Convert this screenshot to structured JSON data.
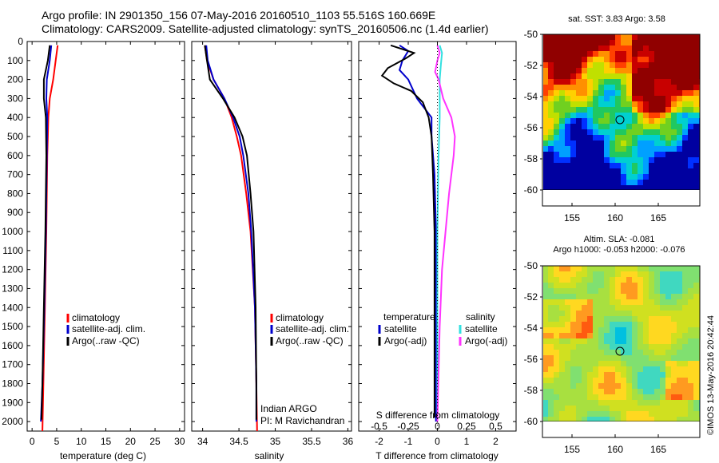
{
  "header": {
    "line1": "Argo profile: IN 2901350_156 07-May-2016 20160510_1103 55.516S 160.669E",
    "line2": "Climatology: CARS2009. Satellite-adjusted climatology: synTS_20160506.nc (1.4d earlier)"
  },
  "colors": {
    "climatology": "#ff0000",
    "satellite": "#0000cc",
    "argo": "#000000",
    "sat_salinity": "#33e0e0",
    "argo_salinity": "#ff33ff"
  },
  "depth_ticks": [
    "0",
    "100",
    "200",
    "300",
    "400",
    "500",
    "600",
    "700",
    "800",
    "900",
    "1000",
    "1100",
    "1200",
    "1300",
    "1400",
    "1500",
    "1600",
    "1700",
    "1800",
    "1900",
    "2000"
  ],
  "temperature_panel": {
    "xlabel": "temperature (deg C)",
    "xticks": [
      "0",
      "5",
      "10",
      "15",
      "20",
      "25",
      "30"
    ],
    "legend": [
      "climatology",
      "satellite-adj. clim.",
      "Argo(..raw -QC)"
    ]
  },
  "salinity_panel": {
    "xlabel": "salinity",
    "xticks": [
      "34",
      "34.5",
      "35",
      "35.5",
      "36"
    ],
    "legend": [
      "climatology",
      "satellite-adj. clim.",
      "Argo(..raw -QC)"
    ],
    "credit1": "Indian ARGO",
    "credit2": "PI: M Ravichandran"
  },
  "difference_panel": {
    "xlabel": "T difference from climatology",
    "top_label": "S difference from climatology",
    "t_ticks": [
      "-2",
      "-1",
      "0",
      "1",
      "2"
    ],
    "s_ticks": [
      "-0.5",
      "-0.25",
      "0",
      "0.25",
      "0.5"
    ],
    "legend_t_title": "temperature",
    "legend_t": [
      "satellite",
      "Argo(-adj)"
    ],
    "legend_s_title": "salinity",
    "legend_s": [
      "satellite",
      "Argo(-adj)"
    ]
  },
  "map_sst": {
    "title": "sat. SST: 3.83  Argo: 3.58",
    "yticks": [
      "-50",
      "-52",
      "-54",
      "-56",
      "-58",
      "-60"
    ],
    "xticks": [
      "155",
      "160",
      "165"
    ]
  },
  "map_sla": {
    "title1": "Altim. SLA: -0.081",
    "title2": "Argo h1000: -0.053 h2000: -0.076",
    "yticks": [
      "-50",
      "-52",
      "-54",
      "-56",
      "-58",
      "-60"
    ],
    "xticks": [
      "155",
      "160",
      "165"
    ]
  },
  "watermark": "©IMOS 13-May-2016 20:42:44",
  "chart_data": [
    {
      "type": "line",
      "name": "temperature profile",
      "xlabel": "temperature (deg C)",
      "ylim": [
        2050,
        0
      ],
      "xlim": [
        -1,
        31
      ],
      "series": [
        {
          "name": "climatology",
          "points": [
            [
              5.2,
              20
            ],
            [
              4.8,
              100
            ],
            [
              4.3,
              200
            ],
            [
              3.6,
              300
            ],
            [
              3.3,
              400
            ],
            [
              3.2,
              500
            ],
            [
              3.1,
              600
            ],
            [
              3.0,
              800
            ],
            [
              2.9,
              1000
            ],
            [
              2.6,
              1400
            ],
            [
              2.3,
              1800
            ],
            [
              2.1,
              2050
            ]
          ]
        },
        {
          "name": "satellite-adj. clim.",
          "points": [
            [
              3.9,
              20
            ],
            [
              3.6,
              100
            ],
            [
              3.0,
              200
            ],
            [
              2.9,
              300
            ],
            [
              3.1,
              400
            ],
            [
              3.0,
              600
            ],
            [
              2.9,
              800
            ],
            [
              2.8,
              1000
            ],
            [
              2.5,
              1400
            ],
            [
              2.1,
              1800
            ],
            [
              1.8,
              2000
            ]
          ]
        },
        {
          "name": "Argo(..raw -QC)",
          "points": [
            [
              3.6,
              20
            ],
            [
              3.2,
              100
            ],
            [
              2.4,
              200
            ],
            [
              2.4,
              300
            ],
            [
              2.8,
              400
            ],
            [
              2.9,
              600
            ],
            [
              2.8,
              800
            ],
            [
              2.7,
              1000
            ],
            [
              2.4,
              1400
            ],
            [
              2.1,
              1800
            ],
            [
              1.9,
              1990
            ]
          ]
        }
      ]
    },
    {
      "type": "line",
      "name": "salinity profile",
      "xlabel": "salinity",
      "ylim": [
        2050,
        0
      ],
      "xlim": [
        33.85,
        36.05
      ],
      "series": [
        {
          "name": "climatology",
          "points": [
            [
              34.03,
              20
            ],
            [
              34.06,
              100
            ],
            [
              34.15,
              200
            ],
            [
              34.3,
              300
            ],
            [
              34.4,
              400
            ],
            [
              34.47,
              500
            ],
            [
              34.53,
              600
            ],
            [
              34.6,
              800
            ],
            [
              34.66,
              1000
            ],
            [
              34.72,
              1400
            ],
            [
              34.74,
              1800
            ],
            [
              34.75,
              2050
            ]
          ]
        },
        {
          "name": "satellite-adj. clim.",
          "points": [
            [
              34.05,
              20
            ],
            [
              34.07,
              100
            ],
            [
              34.15,
              200
            ],
            [
              34.3,
              300
            ],
            [
              34.42,
              400
            ],
            [
              34.51,
              500
            ],
            [
              34.56,
              600
            ],
            [
              34.63,
              800
            ],
            [
              34.67,
              1000
            ],
            [
              34.72,
              1400
            ],
            [
              34.74,
              1800
            ],
            [
              34.74,
              2000
            ]
          ]
        },
        {
          "name": "Argo(..raw -QC)",
          "points": [
            [
              34.03,
              20
            ],
            [
              34.06,
              100
            ],
            [
              34.1,
              200
            ],
            [
              34.28,
              300
            ],
            [
              34.44,
              400
            ],
            [
              34.55,
              500
            ],
            [
              34.61,
              600
            ],
            [
              34.66,
              800
            ],
            [
              34.7,
              1000
            ],
            [
              34.73,
              1400
            ],
            [
              34.74,
              1800
            ],
            [
              34.74,
              1990
            ]
          ]
        }
      ]
    },
    {
      "type": "line",
      "name": "difference from climatology",
      "xlabel": "T difference from climatology",
      "xlim": [
        -2.7,
        2.7
      ],
      "ylim": [
        2050,
        0
      ],
      "series": [
        {
          "name": "temperature satellite",
          "points": [
            [
              -1.3,
              20
            ],
            [
              -1.0,
              50
            ],
            [
              -1.2,
              100
            ],
            [
              -1.3,
              150
            ],
            [
              -1.0,
              200
            ],
            [
              -0.7,
              300
            ],
            [
              -0.2,
              400
            ],
            [
              -0.2,
              500
            ],
            [
              -0.1,
              700
            ],
            [
              -0.05,
              1000
            ],
            [
              -0.05,
              1500
            ],
            [
              -0.05,
              2000
            ]
          ]
        },
        {
          "name": "temperature Argo(-adj)",
          "points": [
            [
              -1.6,
              20
            ],
            [
              -0.8,
              60
            ],
            [
              -1.1,
              90
            ],
            [
              -1.7,
              140
            ],
            [
              -1.9,
              180
            ],
            [
              -1.5,
              220
            ],
            [
              -0.9,
              260
            ],
            [
              -0.5,
              320
            ],
            [
              -0.3,
              400
            ],
            [
              -0.2,
              500
            ],
            [
              -0.15,
              700
            ],
            [
              -0.1,
              1000
            ],
            [
              -0.1,
              1500
            ],
            [
              -0.1,
              1980
            ]
          ]
        },
        {
          "name": "salinity satellite",
          "points": [
            [
              0.02,
              20
            ],
            [
              0.04,
              60
            ],
            [
              0.03,
              120
            ],
            [
              0.02,
              200
            ],
            [
              0.02,
              400
            ],
            [
              0.01,
              600
            ],
            [
              0.0,
              1000
            ],
            [
              0.0,
              1500
            ],
            [
              0.0,
              2000
            ]
          ]
        },
        {
          "name": "salinity Argo(-adj)",
          "points": [
            [
              0.0,
              20
            ],
            [
              0.02,
              60
            ],
            [
              0.0,
              100
            ],
            [
              -0.02,
              160
            ],
            [
              0.01,
              200
            ],
            [
              0.05,
              300
            ],
            [
              0.12,
              400
            ],
            [
              0.15,
              500
            ],
            [
              0.14,
              600
            ],
            [
              0.1,
              800
            ],
            [
              0.07,
              1000
            ],
            [
              0.04,
              1200
            ],
            [
              0.02,
              1500
            ],
            [
              0.0,
              2000
            ]
          ]
        }
      ]
    }
  ]
}
